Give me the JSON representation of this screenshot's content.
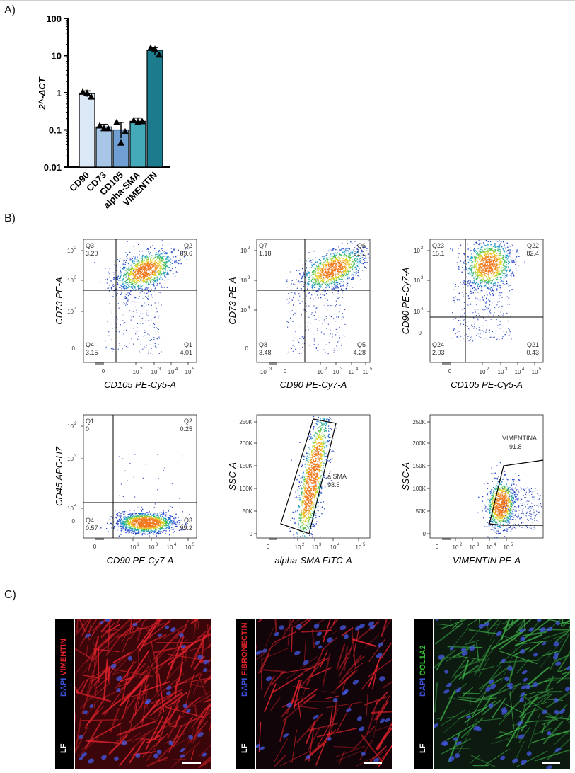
{
  "panels": {
    "a": "A)",
    "b": "B)",
    "c": "C)"
  },
  "chart_data": [
    {
      "type": "bar",
      "title": "",
      "xlabel": "",
      "ylabel": "2^-ΔCT",
      "yscale": "log",
      "ylim": [
        0.01,
        100
      ],
      "yticks": [
        "100",
        "10",
        "1",
        "0.1",
        "0.01"
      ],
      "categories": [
        "CD90",
        "CD73",
        "CD105",
        "alpha-SMA",
        "VIMENTIN"
      ],
      "values": [
        0.95,
        0.12,
        0.1,
        0.17,
        14.0
      ],
      "errors": [
        [
          0.78,
          1.12
        ],
        [
          0.1,
          0.14
        ],
        [
          0.06,
          0.16
        ],
        [
          0.14,
          0.21
        ],
        [
          10.5,
          16.5
        ]
      ],
      "points": [
        [
          1.05,
          1.0,
          0.78
        ],
        [
          0.13,
          0.11,
          0.11
        ],
        [
          0.16,
          0.045,
          0.09
        ],
        [
          0.18,
          0.16,
          0.17
        ],
        [
          16.0,
          15.0,
          10.5
        ]
      ],
      "colors": [
        "#dbe8f6",
        "#a8c6e6",
        "#6f9fd3",
        "#44a9b8",
        "#1d7b8e"
      ]
    }
  ],
  "flow": {
    "p1": {
      "xlabel": "CD105 PE-Cy5-A",
      "ylabel": "CD73 PE-A",
      "q": [
        {
          "n": "Q3",
          "v": "3.20"
        },
        {
          "n": "Q2",
          "v": "89.6"
        },
        {
          "n": "Q4",
          "v": "3.15"
        },
        {
          "n": "Q1",
          "v": "4.01"
        }
      ]
    },
    "p2": {
      "xlabel": "CD90 PE-Cy7-A",
      "ylabel": "CD73 PE-A",
      "q": [
        {
          "n": "Q7",
          "v": "1.18"
        },
        {
          "n": "Q6",
          "v": "91.1"
        },
        {
          "n": "Q8",
          "v": "3.48"
        },
        {
          "n": "Q5",
          "v": "4.28"
        }
      ]
    },
    "p3": {
      "xlabel": "CD105 PE-Cy5-A",
      "ylabel": "CD90 PE-Cy7-A",
      "q": [
        {
          "n": "Q23",
          "v": "15.1"
        },
        {
          "n": "Q22",
          "v": "82.4"
        },
        {
          "n": "Q24",
          "v": "2.03"
        },
        {
          "n": "Q21",
          "v": "0.43"
        }
      ]
    },
    "p4": {
      "xlabel": "CD90 PE-Cy7-A",
      "ylabel": "CD45 APC-H7",
      "q": [
        {
          "n": "Q1",
          "v": "0"
        },
        {
          "n": "Q2",
          "v": "0.25"
        },
        {
          "n": "Q4",
          "v": "0.57"
        },
        {
          "n": "Q3",
          "v": "99.2"
        }
      ]
    },
    "p5": {
      "xlabel": "alpha-SMA FITC-A",
      "ylabel": "SSC-A",
      "gate_name": "a SMA",
      "gate_value": "98.5"
    },
    "p6": {
      "xlabel": "VIMENTIN PE-A",
      "ylabel": "SSC-A",
      "gate_name": "VIMENTINA",
      "gate_value": "91.8"
    },
    "log_ticks": [
      "10",
      "10",
      "10",
      "10",
      "10"
    ],
    "log_exp": [
      "2",
      "3",
      "4",
      "5"
    ],
    "ssc_ticks": [
      "250K",
      "200K",
      "150K",
      "100K",
      "50K",
      "0"
    ]
  },
  "micrographs": [
    {
      "cell_type": "LF",
      "stain_dapi": "DAPI",
      "stain_marker": "VIMENTIN",
      "marker_color": "#e0242c",
      "tone": "red"
    },
    {
      "cell_type": "LF",
      "stain_dapi": "DAPI",
      "stain_marker": "FIBRONECTIN",
      "marker_color": "#e0242c",
      "tone": "red-sparse"
    },
    {
      "cell_type": "LF",
      "stain_dapi": "DAPI",
      "stain_marker": "COL1A2",
      "marker_color": "#35c035",
      "tone": "green"
    }
  ],
  "colors": {
    "dapi": "#3d52d6",
    "scale_bar": "#ffffff"
  }
}
